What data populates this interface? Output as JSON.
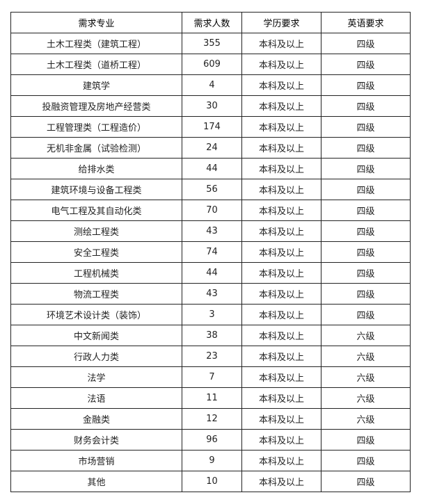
{
  "headers": [
    "需求专业",
    "需求人数",
    "学历要求",
    "英语要求"
  ],
  "rows": [
    [
      "土木工程类（建筑工程）",
      "355",
      "本科及以上",
      "四级"
    ],
    [
      "土木工程类（道桥工程）",
      "609",
      "本科及以上",
      "四级"
    ],
    [
      "建筑学",
      "4",
      "本科及以上",
      "四级"
    ],
    [
      "投融资管理及房地产经营类",
      "30",
      "本科及以上",
      "四级"
    ],
    [
      "工程管理类（工程造价）",
      "174",
      "本科及以上",
      "四级"
    ],
    [
      "无机非金属（试验检测）",
      "24",
      "本科及以上",
      "四级"
    ],
    [
      "给排水类",
      "44",
      "本科及以上",
      "四级"
    ],
    [
      "建筑环境与设备工程类",
      "56",
      "本科及以上",
      "四级"
    ],
    [
      "电气工程及其自动化类",
      "70",
      "本科及以上",
      "四级"
    ],
    [
      "测绘工程类",
      "43",
      "本科及以上",
      "四级"
    ],
    [
      "安全工程类",
      "74",
      "本科及以上",
      "四级"
    ],
    [
      "工程机械类",
      "44",
      "本科及以上",
      "四级"
    ],
    [
      "物流工程类",
      "43",
      "本科及以上",
      "四级"
    ],
    [
      "环境艺术设计类（装饰）",
      "3",
      "本科及以上",
      "四级"
    ],
    [
      "中文新闻类",
      "38",
      "本科及以上",
      "六级"
    ],
    [
      "行政人力类",
      "23",
      "本科及以上",
      "六级"
    ],
    [
      "法学",
      "7",
      "本科及以上",
      "六级"
    ],
    [
      "法语",
      "11",
      "本科及以上",
      "六级"
    ],
    [
      "金融类",
      "12",
      "本科及以上",
      "六级"
    ],
    [
      "财务会计类",
      "96",
      "本科及以上",
      "四级"
    ],
    [
      "市场营销",
      "9",
      "本科及以上",
      "四级"
    ],
    [
      "其他",
      "10",
      "本科及以上",
      "四级"
    ]
  ]
}
